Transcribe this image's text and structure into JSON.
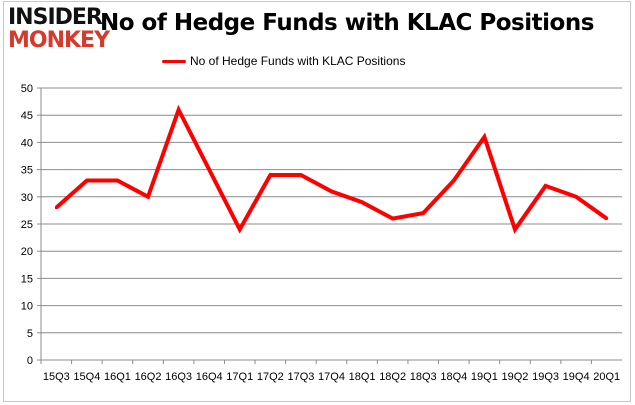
{
  "logo": {
    "line1": "INSIDER",
    "line2": "MONKEY"
  },
  "chart_data": {
    "type": "line",
    "title": "No of Hedge Funds with KLAC Positions",
    "categories": [
      "15Q3",
      "15Q4",
      "16Q1",
      "16Q2",
      "16Q3",
      "16Q4",
      "17Q1",
      "17Q2",
      "17Q3",
      "17Q4",
      "18Q1",
      "18Q2",
      "18Q3",
      "18Q4",
      "19Q1",
      "19Q2",
      "19Q3",
      "19Q4",
      "20Q1"
    ],
    "series": [
      {
        "name": "No of Hedge Funds with KLAC Positions",
        "color": "#ff0000",
        "values": [
          28,
          33,
          33,
          30,
          46,
          35,
          24,
          34,
          34,
          31,
          29,
          26,
          27,
          33,
          41,
          24,
          32,
          30,
          26
        ]
      }
    ],
    "ylim": [
      0,
      50
    ],
    "yticks": [
      0,
      5,
      10,
      15,
      20,
      25,
      30,
      35,
      40,
      45,
      50
    ],
    "grid": true,
    "legend": "top-center",
    "xlabel": "",
    "ylabel": ""
  }
}
